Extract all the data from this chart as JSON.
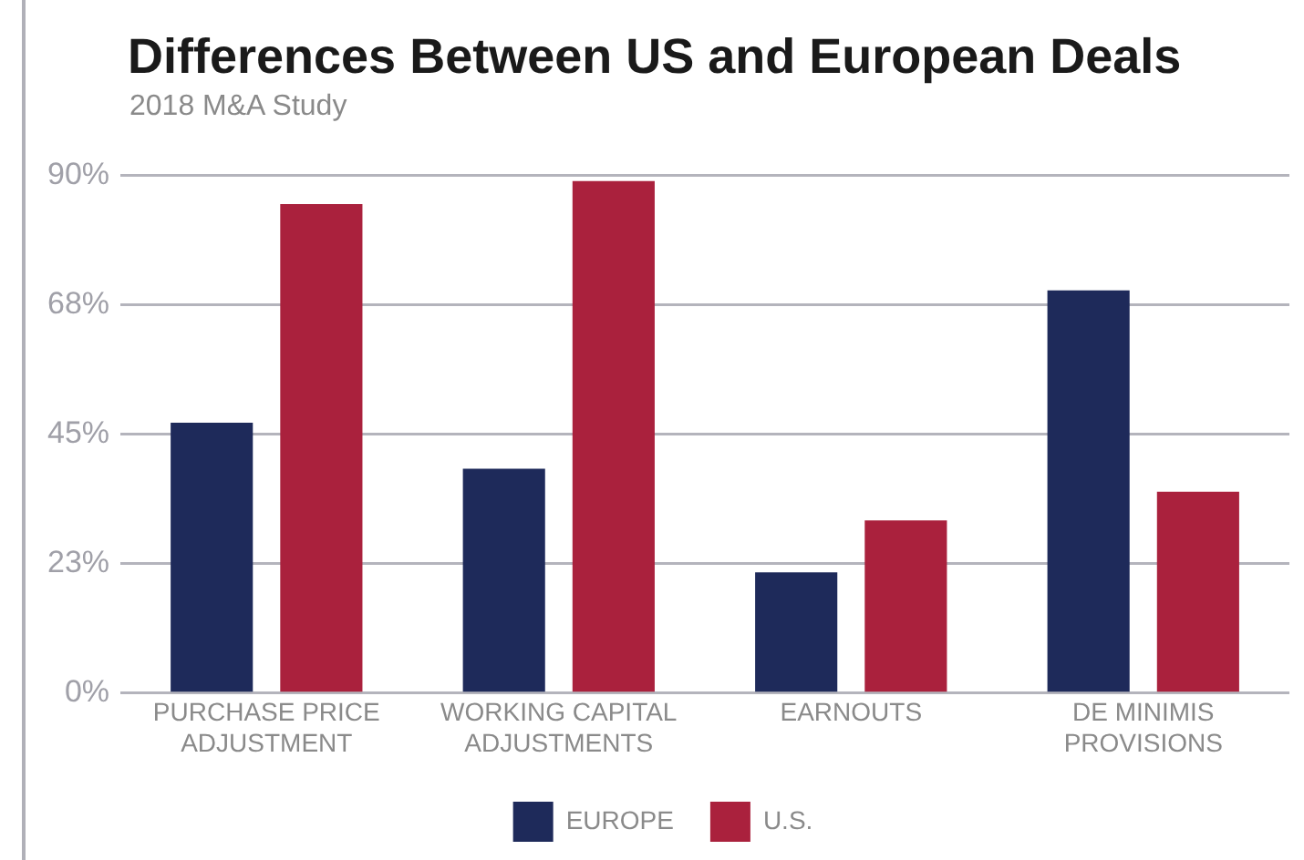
{
  "chart_data": {
    "type": "bar",
    "title": "Differences Between US and European Deals",
    "subtitle": "2018 M&A Study",
    "categories": [
      "PURCHASE PRICE ADJUSTMENT",
      "WORKING CAPITAL ADJUSTMENTS",
      "EARNOUTS",
      "DE MINIMIS PROVISIONS"
    ],
    "series": [
      {
        "name": "EUROPE",
        "color": "#1e2a5a",
        "values": [
          47,
          39,
          21,
          70
        ]
      },
      {
        "name": "U.S.",
        "color": "#aa213d",
        "values": [
          85,
          89,
          30,
          35
        ]
      }
    ],
    "ylim": [
      0,
      90
    ],
    "yticks": [
      {
        "value": 0,
        "label": "0%"
      },
      {
        "value": 22.5,
        "label": "23%"
      },
      {
        "value": 45,
        "label": "45%"
      },
      {
        "value": 67.5,
        "label": "68%"
      },
      {
        "value": 90,
        "label": "90%"
      }
    ],
    "grid": "y",
    "legend": "bottom"
  }
}
